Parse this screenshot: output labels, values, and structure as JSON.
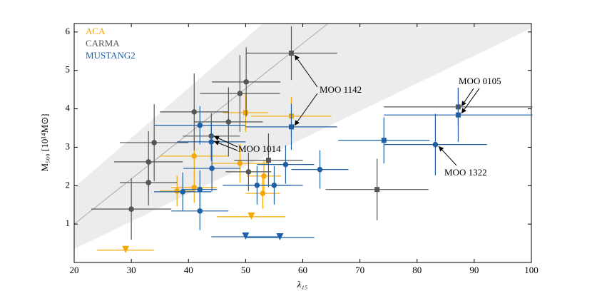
{
  "chart_data": {
    "type": "scatter",
    "xlabel": "λ₁₅",
    "ylabel": "M₅₀₀ [10¹⁴M⊙]",
    "xlim": [
      20,
      100
    ],
    "ylim": [
      0,
      6.22
    ],
    "xticks": [
      20,
      30,
      40,
      50,
      60,
      70,
      80,
      90,
      100
    ],
    "yticks": [
      1,
      2,
      3,
      4,
      5,
      6
    ],
    "legend": "upper left",
    "fit_line": {
      "x": [
        20,
        64.4
      ],
      "y": [
        1,
        6.22
      ]
    },
    "band": {
      "x": [
        20,
        20,
        53,
        100,
        100
      ],
      "y": [
        0.35,
        1.95,
        6.22,
        6.22,
        6.1
      ]
    },
    "series": [
      {
        "name": "ACA",
        "color": "#f5a800",
        "x": [
          50,
          58,
          41,
          49,
          53.2,
          41,
          38,
          53,
          51,
          29
        ],
        "y": [
          3.9,
          3.81,
          2.77,
          2.58,
          2.25,
          1.95,
          1.86,
          1.8,
          1.19,
          0.32
        ],
        "xerr": [
          4,
          7,
          6,
          5,
          3,
          4,
          3,
          3,
          6,
          5
        ],
        "yerr": [
          0.5,
          0.5,
          0.5,
          0.5,
          0.4,
          0.4,
          0.4,
          0.4,
          null,
          null
        ],
        "markers": [
          "square",
          "square",
          "circle",
          "circle",
          "circle",
          "circle",
          "circle",
          "circle",
          "triangle",
          "triangle"
        ]
      },
      {
        "name": "CARMA",
        "color": "#555555",
        "x": [
          58,
          50.1,
          49,
          41,
          47,
          44,
          34,
          33,
          33,
          30,
          50.5,
          54,
          73,
          87.2
        ],
        "y": [
          5.45,
          4.7,
          4.4,
          3.92,
          3.66,
          3.29,
          3.12,
          2.62,
          2.08,
          1.39,
          2.36,
          2.66,
          1.9,
          4.05
        ],
        "xerr": [
          8,
          6,
          7,
          6,
          6,
          5,
          6,
          6,
          5,
          7,
          4,
          6,
          9,
          13
        ],
        "yerr": [
          0.7,
          0.9,
          1,
          1,
          0.9,
          0.6,
          1,
          0.8,
          0.6,
          0.8,
          0.5,
          0.7,
          0.8,
          0.5
        ],
        "markers": [
          "square",
          "circle",
          "circle",
          "circle",
          "circle",
          "circle",
          "circle",
          "circle",
          "circle",
          "circle",
          "circle",
          "square",
          "square",
          "square"
        ]
      },
      {
        "name": "MUSTANG2",
        "color": "#1f5fa6",
        "x": [
          58,
          42,
          44,
          44.1,
          57,
          63,
          52,
          55,
          39,
          42,
          42,
          74.2,
          83.2,
          87.2,
          50,
          56
        ],
        "y": [
          3.53,
          3.57,
          3.14,
          2.45,
          2.55,
          2.42,
          2.01,
          2.01,
          1.84,
          1.9,
          1.34,
          3.18,
          3.07,
          3.84,
          0.67,
          0.65
        ],
        "xerr": [
          8,
          8,
          6,
          5,
          5,
          5,
          6,
          5,
          5,
          3,
          5,
          8,
          9,
          13,
          6,
          6
        ],
        "yerr": [
          0.6,
          0.5,
          0.5,
          0.6,
          0.5,
          0.5,
          0.5,
          0.5,
          0.5,
          0.5,
          0.5,
          0.6,
          0.8,
          0.7,
          null,
          null
        ],
        "markers": [
          "square",
          "circle",
          "circle",
          "circle",
          "circle",
          "circle",
          "circle",
          "circle",
          "circle",
          "circle",
          "circle",
          "square",
          "circle",
          "square",
          "triangle",
          "triangle"
        ]
      }
    ],
    "annotations": [
      "MOO 1142",
      "MOO 0105",
      "MOO 1014",
      "MOO 1322"
    ]
  }
}
